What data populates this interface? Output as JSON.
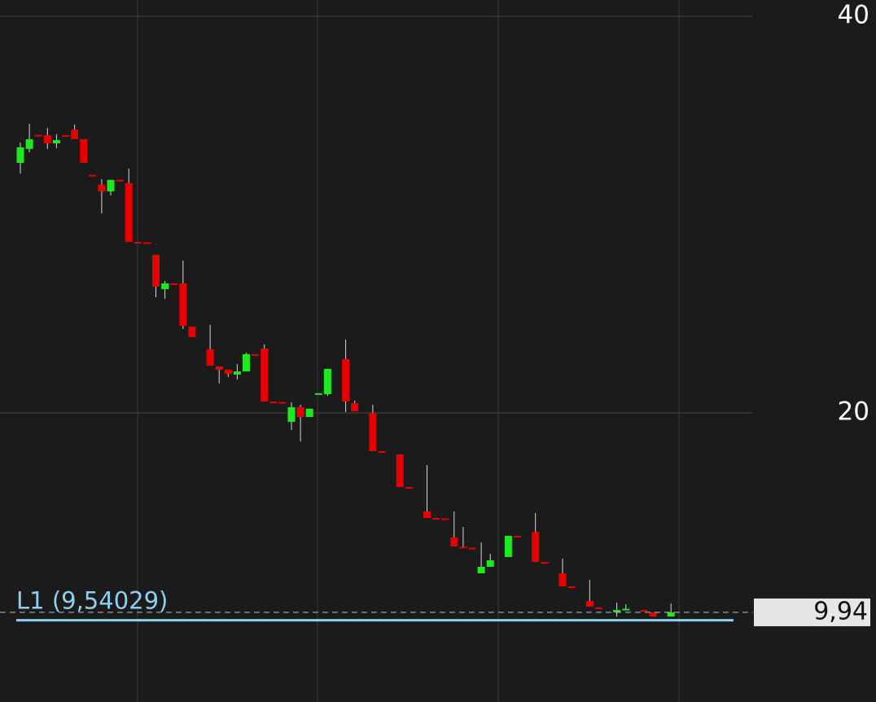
{
  "chart_data": {
    "type": "candlestick",
    "open": [
      32.61,
      33.31,
      34.02,
      34.0,
      33.59,
      34.0,
      34.29,
      33.8,
      32.0,
      31.5,
      31.17,
      31.75,
      31.58,
      28.62,
      28.6,
      27.97,
      26.24,
      26.53,
      26.53,
      24.35,
      null,
      23.2,
      22.34,
      22.18,
      21.93,
      22.09,
      22.96,
      23.24,
      20.57,
      20.55,
      19.55,
      20.29,
      19.79,
      20.97,
      20.94,
      null,
      22.71,
      20.49,
      null,
      20.0,
      18.07,
      null,
      17.91,
      16.26,
      null,
      15.03,
      14.7,
      14.68,
      13.72,
      13.25,
      13.2,
      11.91,
      12.24,
      null,
      12.73,
      13.8,
      null,
      14.0,
      12.48,
      null,
      11.91,
      11.25,
      null,
      10.51,
      10.19,
      null,
      9.94,
      10.1,
      null,
      10.06,
      9.94,
      null,
      9.73
    ],
    "high": [
      33.63,
      34.58,
      34.02,
      34.37,
      34.05,
      34.0,
      34.54,
      33.8,
      32.0,
      31.79,
      31.75,
      31.75,
      32.32,
      28.62,
      28.6,
      27.97,
      26.65,
      26.53,
      27.68,
      24.35,
      null,
      24.44,
      22.34,
      22.18,
      22.46,
      23.04,
      22.96,
      23.45,
      20.57,
      20.55,
      20.53,
      20.41,
      20.21,
      20.99,
      22.22,
      null,
      23.7,
      20.62,
      null,
      20.41,
      18.07,
      null,
      17.91,
      16.26,
      null,
      17.37,
      14.7,
      14.68,
      15.03,
      14.25,
      13.2,
      13.47,
      12.9,
      null,
      13.8,
      13.8,
      null,
      14.95,
      12.48,
      null,
      12.65,
      11.25,
      null,
      11.58,
      10.19,
      null,
      10.43,
      10.35,
      null,
      10.06,
      9.94,
      null,
      10.39
    ],
    "low": [
      32.07,
      33.14,
      34.0,
      33.31,
      33.35,
      33.97,
      33.8,
      32.61,
      31.97,
      30.06,
      30.96,
      31.72,
      28.62,
      28.6,
      28.58,
      25.83,
      25.75,
      26.5,
      24.23,
      23.82,
      null,
      22.38,
      21.48,
      21.81,
      21.68,
      22.09,
      22.93,
      20.57,
      20.55,
      20.53,
      19.14,
      18.56,
      19.79,
      20.97,
      20.86,
      null,
      20.04,
      20.08,
      null,
      18.07,
      18.05,
      null,
      16.26,
      16.24,
      null,
      14.7,
      14.68,
      14.66,
      13.27,
      13.23,
      13.18,
      11.91,
      12.24,
      null,
      12.73,
      13.78,
      null,
      12.48,
      12.46,
      null,
      11.25,
      11.23,
      null,
      10.23,
      10.17,
      null,
      9.73,
      10.1,
      null,
      10.04,
      9.73,
      null,
      9.73
    ],
    "close": [
      33.39,
      33.8,
      34.0,
      33.59,
      33.76,
      33.97,
      33.8,
      32.61,
      31.97,
      31.17,
      31.75,
      31.72,
      28.62,
      28.6,
      28.58,
      26.37,
      26.53,
      26.5,
      24.39,
      23.82,
      null,
      22.38,
      22.18,
      21.97,
      22.09,
      22.96,
      22.93,
      20.57,
      20.55,
      20.53,
      20.29,
      19.79,
      20.21,
      20.99,
      22.22,
      null,
      20.57,
      20.08,
      null,
      18.07,
      18.05,
      null,
      16.26,
      16.24,
      null,
      14.7,
      14.68,
      14.66,
      13.27,
      13.23,
      13.18,
      12.24,
      12.57,
      null,
      13.8,
      13.78,
      null,
      12.48,
      12.46,
      null,
      11.25,
      11.23,
      null,
      10.23,
      10.17,
      null,
      10.06,
      10.12,
      null,
      10.04,
      9.73,
      null,
      9.94
    ],
    "up_color": "#1ee81e",
    "down_color": "#e80000",
    "ylim": [
      5.42,
      40.82
    ],
    "yticks": [
      20,
      40
    ],
    "grid": true,
    "last_price": {
      "value": 9.94,
      "label": "9,94"
    },
    "level_line": {
      "label": "L1 (9,54029)",
      "value": 9.54029,
      "color": "#8ecfee"
    }
  }
}
